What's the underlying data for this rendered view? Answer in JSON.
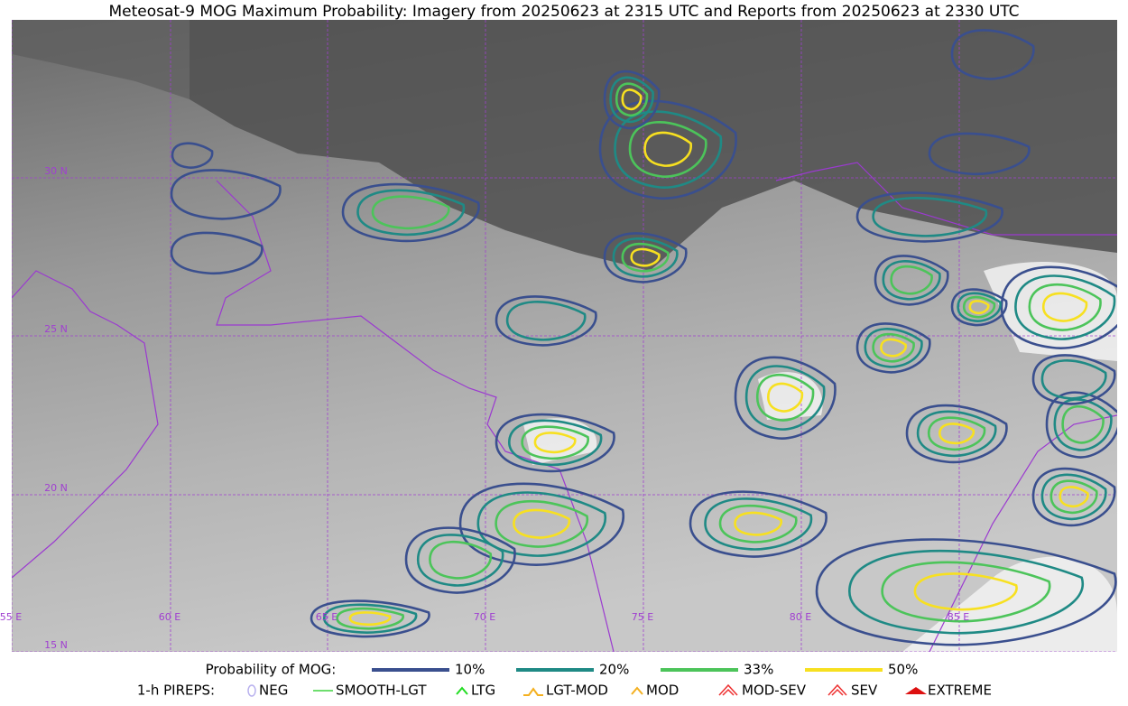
{
  "title": "Meteosat-9 MOG Maximum Probability: Imagery from 20250623 at 2315 UTC and Reports from 20250623 at 2330 UTC",
  "map": {
    "lon_labels": [
      "55 E",
      "60 E",
      "65 E",
      "70 E",
      "75 E",
      "80 E",
      "85 E"
    ],
    "lat_labels": [
      "30 N",
      "25 N",
      "20 N",
      "15 N"
    ]
  },
  "legend": {
    "probability": {
      "label": "Probability of MOG:",
      "items": [
        {
          "label": "10%",
          "color": "#3a4f8e"
        },
        {
          "label": "20%",
          "color": "#1f8a85"
        },
        {
          "label": "33%",
          "color": "#4cc45a"
        },
        {
          "label": "50%",
          "color": "#f7e020"
        }
      ]
    },
    "pireps": {
      "label": "1-h PIREPS:",
      "items": [
        {
          "label": "NEG",
          "color": "#b8b0ee"
        },
        {
          "label": "SMOOTH-LGT",
          "color": "#3ed43e"
        },
        {
          "label": "LTG",
          "color": "#22dd22"
        },
        {
          "label": "LGT-MOD",
          "color": "#f4b020"
        },
        {
          "label": "MOD",
          "color": "#f4b020"
        },
        {
          "label": "MOD-SEV",
          "color": "#ee3030"
        },
        {
          "label": "SEV",
          "color": "#ee3030"
        },
        {
          "label": "EXTREME",
          "color": "#dd1010"
        }
      ]
    }
  }
}
